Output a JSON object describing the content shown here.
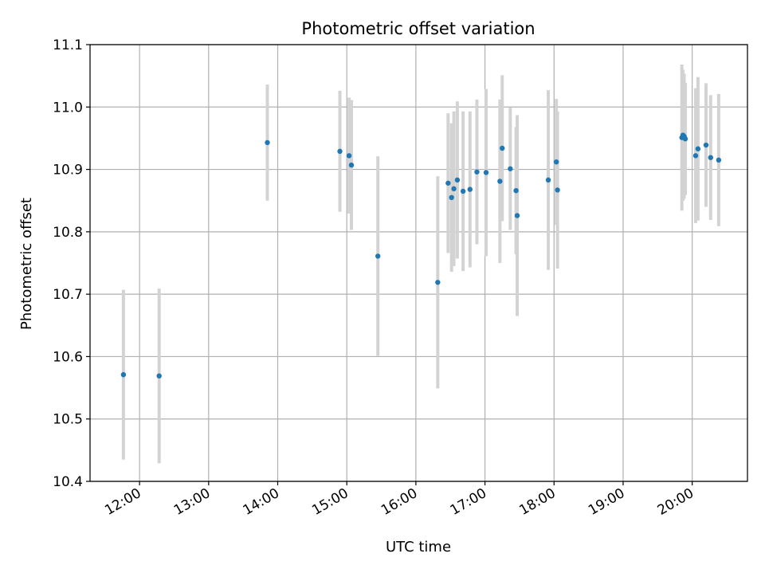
{
  "chart_data": {
    "type": "scatter",
    "title": "Photometric offset variation",
    "xlabel": "UTC time",
    "ylabel": "Photometric offset",
    "x_axis_kind": "time (hours, UTC)",
    "xlim": [
      "11:17",
      "20:48"
    ],
    "ylim": [
      10.4,
      11.1
    ],
    "x_ticks": [
      "12:00",
      "13:00",
      "14:00",
      "15:00",
      "16:00",
      "17:00",
      "18:00",
      "19:00",
      "20:00"
    ],
    "y_ticks": [
      "10.4",
      "10.5",
      "10.6",
      "10.7",
      "10.8",
      "10.9",
      "11.0",
      "11.1"
    ],
    "grid": true,
    "legend": "none",
    "marker_color": "#1f77b4",
    "errorbar_color": "#d3d3d3",
    "points": [
      {
        "x": "11:46",
        "y": 10.571,
        "err": 0.136
      },
      {
        "x": "12:17",
        "y": 10.569,
        "err": 0.14
      },
      {
        "x": "13:51",
        "y": 10.943,
        "err": 0.093
      },
      {
        "x": "14:54",
        "y": 10.929,
        "err": 0.097
      },
      {
        "x": "15:02",
        "y": 10.922,
        "err": 0.093
      },
      {
        "x": "15:04",
        "y": 10.907,
        "err": 0.104
      },
      {
        "x": "15:27",
        "y": 10.761,
        "err": 0.16
      },
      {
        "x": "16:19",
        "y": 10.719,
        "err": 0.17
      },
      {
        "x": "16:28",
        "y": 10.878,
        "err": 0.112
      },
      {
        "x": "16:31",
        "y": 10.855,
        "err": 0.119
      },
      {
        "x": "16:33",
        "y": 10.869,
        "err": 0.124
      },
      {
        "x": "16:36",
        "y": 10.883,
        "err": 0.126
      },
      {
        "x": "16:41",
        "y": 10.865,
        "err": 0.128
      },
      {
        "x": "16:47",
        "y": 10.868,
        "err": 0.125
      },
      {
        "x": "16:53",
        "y": 10.896,
        "err": 0.116
      },
      {
        "x": "17:01",
        "y": 10.895,
        "err": 0.134
      },
      {
        "x": "17:13",
        "y": 10.881,
        "err": 0.131
      },
      {
        "x": "17:15",
        "y": 10.934,
        "err": 0.117
      },
      {
        "x": "17:22",
        "y": 10.901,
        "err": 0.098
      },
      {
        "x": "17:27",
        "y": 10.866,
        "err": 0.102
      },
      {
        "x": "17:28",
        "y": 10.826,
        "err": 0.161
      },
      {
        "x": "17:55",
        "y": 10.883,
        "err": 0.144
      },
      {
        "x": "18:02",
        "y": 10.912,
        "err": 0.101
      },
      {
        "x": "18:03",
        "y": 10.867,
        "err": 0.126
      },
      {
        "x": "19:51",
        "y": 10.951,
        "err": 0.117
      },
      {
        "x": "19:52",
        "y": 10.955,
        "err": 0.105
      },
      {
        "x": "19:53",
        "y": 10.953,
        "err": 0.1
      },
      {
        "x": "19:54",
        "y": 10.949,
        "err": 0.09
      },
      {
        "x": "20:03",
        "y": 10.922,
        "err": 0.108
      },
      {
        "x": "20:05",
        "y": 10.933,
        "err": 0.115
      },
      {
        "x": "20:12",
        "y": 10.939,
        "err": 0.099
      },
      {
        "x": "20:16",
        "y": 10.919,
        "err": 0.1
      },
      {
        "x": "20:23",
        "y": 10.915,
        "err": 0.106
      }
    ]
  }
}
